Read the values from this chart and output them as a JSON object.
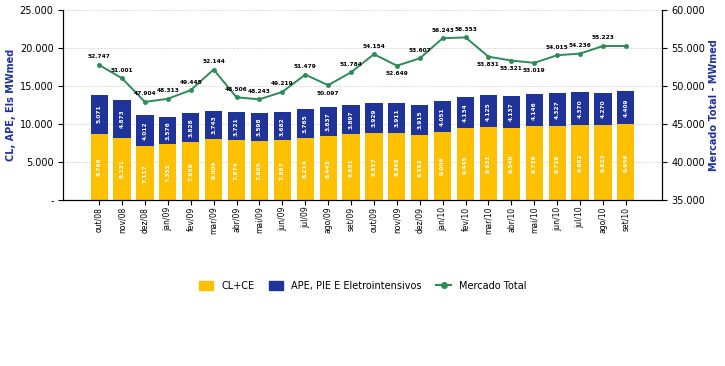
{
  "categories": [
    "out/08",
    "nov/08",
    "dez/08",
    "jan/09",
    "fev/09",
    "mar/09",
    "abr/09",
    "mai/09",
    "jun/09",
    "jul/09",
    "ago/09",
    "set/09",
    "out/09",
    "nov/09",
    "dez/09",
    "jan/10",
    "fev/10",
    "mar/10",
    "abr/10",
    "mai/10",
    "jun/10",
    "jul/10",
    "ago/10",
    "set/10"
  ],
  "cl_ce": [
    8766,
    8231,
    7117,
    7352,
    7658,
    8009,
    7874,
    7805,
    7887,
    8214,
    8443,
    8651,
    8857,
    8865,
    8582,
    9008,
    9445,
    9631,
    9540,
    9736,
    9729,
    9862,
    9823,
    9956
  ],
  "ape": [
    5071,
    4873,
    4012,
    3576,
    3828,
    3743,
    3721,
    3598,
    3682,
    3765,
    3837,
    3897,
    3929,
    3911,
    3915,
    4051,
    4134,
    4125,
    4137,
    4146,
    4327,
    4370,
    4270,
    4409
  ],
  "cl_ce_labels": [
    "8.766",
    "8.231",
    "7.117",
    "7.352",
    "7.658",
    "8.009",
    "7.874",
    "7.805",
    "7.887",
    "8.214",
    "8.443",
    "8.651",
    "8.857",
    "8.865",
    "8.582",
    "9.008",
    "9.445",
    "9.631",
    "9.540",
    "9.736",
    "9.729",
    "9.862",
    "9.823",
    "9.956"
  ],
  "ape_labels": [
    "5.071",
    "4.873",
    "4.012",
    "3.576",
    "3.828",
    "3.743",
    "3.721",
    "3.598",
    "3.682",
    "3.765",
    "3.837",
    "3.897",
    "3.929",
    "3.911",
    "3.915",
    "4.051",
    "4.134",
    "4.125",
    "4.137",
    "4.146",
    "4.327",
    "4.370",
    "4.270",
    "4.409"
  ],
  "mercado_total": [
    52747,
    51001,
    47904,
    48313,
    49445,
    52144,
    48506,
    48243,
    49219,
    51479,
    50097,
    51784,
    54154,
    52649,
    53607,
    56243,
    56353,
    53831,
    53321,
    53019,
    54015,
    54236,
    55223,
    55223
  ],
  "mercado_labels": [
    "52.747",
    "51.001",
    "47.904",
    "48.313",
    "49.445",
    "52.144",
    "48.506",
    "48.243",
    "49.219",
    "51.479",
    "50.097",
    "51.784",
    "54.154",
    "52.649",
    "53.607",
    "56.243",
    "56.353",
    "53.831",
    "53.321",
    "53.019",
    "54.015",
    "54.236",
    "55.223",
    ""
  ],
  "mercado_valign": [
    "bottom",
    "bottom",
    "bottom",
    "bottom",
    "bottom",
    "bottom",
    "bottom",
    "bottom",
    "bottom",
    "bottom",
    "top",
    "bottom",
    "bottom",
    "top",
    "bottom",
    "bottom",
    "bottom",
    "top",
    "top",
    "top",
    "bottom",
    "bottom",
    "bottom",
    "bottom"
  ],
  "color_cl": "#FFC000",
  "color_ape": "#1F3399",
  "color_line": "#2E8B57",
  "ylabel_left": "CL, APE, EIs MWmed",
  "ylabel_right": "Mercado Total - MWmed",
  "ylim_left": [
    0,
    25000
  ],
  "ylim_right": [
    35000,
    60000
  ],
  "yticks_left": [
    0,
    5000,
    10000,
    15000,
    20000,
    25000
  ],
  "yticks_right": [
    35000,
    40000,
    45000,
    50000,
    55000,
    60000
  ],
  "ytick_left_labels": [
    "-",
    "5.000",
    "10.000",
    "15.000",
    "20.000",
    "25.000"
  ],
  "ytick_right_labels": [
    "35.000",
    "40.000",
    "45.000",
    "50.000",
    "55.000",
    "60.000"
  ],
  "legend_labels": [
    "CL+CE",
    "APE, PIE E Eletrointensivos",
    "Mercado Total"
  ],
  "bar_width": 0.75
}
